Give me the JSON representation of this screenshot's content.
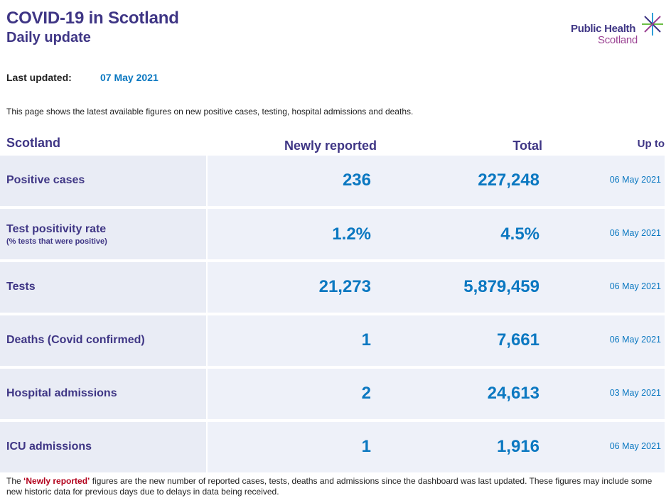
{
  "header": {
    "title": "COVID-19 in Scotland",
    "subtitle": "Daily update"
  },
  "logo": {
    "line1": "Public Health",
    "line2": "Scotland",
    "colors": {
      "purple": "#3f3685",
      "magenta": "#9b4393",
      "green": "#6cbe45",
      "blue": "#2d9fd9"
    }
  },
  "updated": {
    "label": "Last updated:",
    "value": "07 May 2021"
  },
  "intro": "This page shows the latest available figures on new positive cases, testing, hospital admissions and deaths.",
  "table": {
    "headers": {
      "region": "Scotland",
      "new": "Newly reported",
      "total": "Total",
      "upto": "Up to"
    },
    "rows": [
      {
        "label": "Positive cases",
        "sub": "",
        "new": "236",
        "total": "227,248",
        "date": "06 May 2021"
      },
      {
        "label": "Test positivity rate",
        "sub": "(% tests that were positive)",
        "new": "1.2%",
        "total": "4.5%",
        "date": "06 May 2021"
      },
      {
        "label": "Tests",
        "sub": "",
        "new": "21,273",
        "total": "5,879,459",
        "date": "06 May 2021"
      },
      {
        "label": "Deaths (Covid confirmed)",
        "sub": "",
        "new": "1",
        "total": "7,661",
        "date": "06 May 2021"
      },
      {
        "label": "Hospital admissions",
        "sub": "",
        "new": "2",
        "total": "24,613",
        "date": "03 May 2021"
      },
      {
        "label": "ICU admissions",
        "sub": "",
        "new": "1",
        "total": "1,916",
        "date": "06 May 2021"
      }
    ]
  },
  "footnote": {
    "prefix": "The ",
    "highlight": "‘Newly reported’",
    "text": " figures are the new number of reported cases, tests, deaths and admissions since the dashboard was last updated. These figures may include some new historic data for previous days due to delays in data being received."
  },
  "colors": {
    "heading": "#3f3685",
    "value": "#0b78c1",
    "highlight": "#b2001b",
    "label_bg": "#e9ecf5",
    "value_bg": "#eef1f9"
  }
}
